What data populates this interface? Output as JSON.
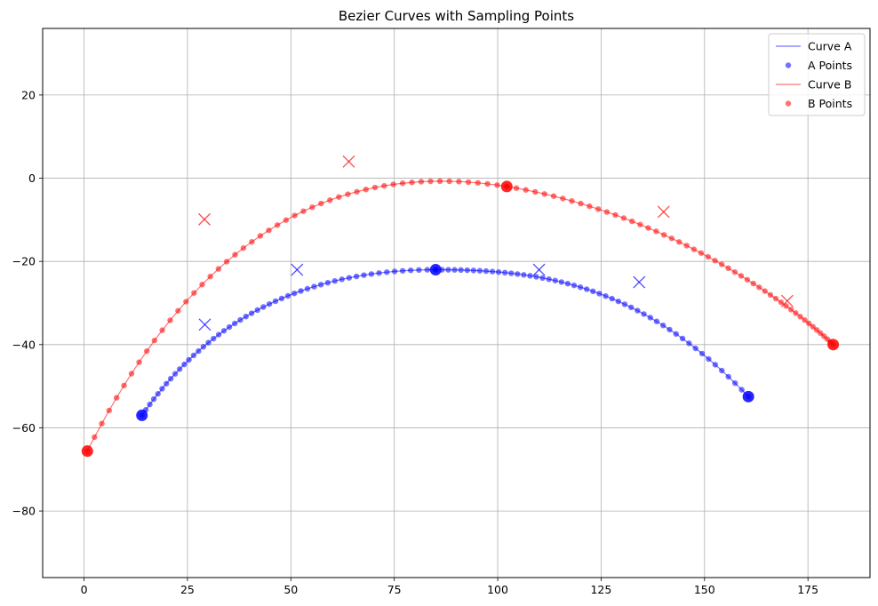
{
  "chart_data": {
    "type": "scatter",
    "title": "Bezier Curves with Sampling Points",
    "xlabel": "",
    "ylabel": "",
    "xlim": [
      -10,
      190
    ],
    "ylim": [
      -96,
      36
    ],
    "xticks": [
      0,
      25,
      50,
      75,
      100,
      125,
      150,
      175
    ],
    "yticks": [
      -80,
      -60,
      -40,
      -20,
      0,
      20
    ],
    "grid": true,
    "legend_position": "top-right",
    "series": [
      {
        "name": "Curve A",
        "points_name": "A Points",
        "color": "#0000ff",
        "control_points": [
          [
            14,
            -57
          ],
          [
            29.2,
            -35.2
          ],
          [
            51.5,
            -22
          ],
          [
            85,
            -22
          ],
          [
            110,
            -22
          ],
          [
            134.2,
            -25
          ],
          [
            160.6,
            -52.5
          ]
        ],
        "segment_points_per_segment": 50,
        "endpoints": [
          [
            14,
            -57
          ],
          [
            85,
            -22
          ],
          [
            160.6,
            -52.5
          ]
        ],
        "markers_x": [
          [
            29.2,
            -35.2
          ],
          [
            51.5,
            -22
          ],
          [
            110,
            -22
          ],
          [
            134.2,
            -25
          ]
        ]
      },
      {
        "name": "Curve B",
        "points_name": "B Points",
        "color": "#ff0000",
        "control_points": [
          [
            0.8,
            -65.6
          ],
          [
            29.1,
            -9.9
          ],
          [
            64,
            4
          ],
          [
            102.2,
            -2
          ],
          [
            140.1,
            -8.1
          ],
          [
            170,
            -29.5
          ],
          [
            181.1,
            -40
          ]
        ],
        "segment_points_per_segment": 50,
        "endpoints": [
          [
            0.8,
            -65.6
          ],
          [
            102.2,
            -2
          ],
          [
            181.1,
            -40
          ]
        ],
        "markers_x": [
          [
            29.1,
            -9.9
          ],
          [
            64,
            4
          ],
          [
            140.1,
            -8.1
          ],
          [
            170,
            -29.5
          ]
        ]
      }
    ],
    "legend": [
      "Curve A",
      "A Points",
      "Curve B",
      "B Points"
    ]
  }
}
